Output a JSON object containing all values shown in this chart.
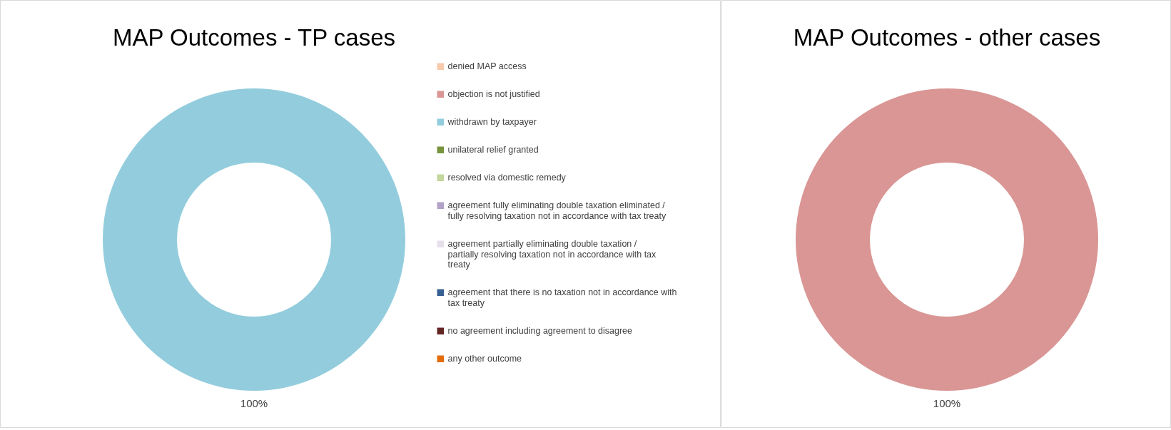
{
  "chart_data": [
    {
      "type": "donut",
      "title": "MAP Outcomes - TP cases",
      "categories": [
        "denied MAP access",
        "objection is not justified",
        "withdrawn by taxpayer",
        "unilateral relief granted",
        "resolved via domestic remedy",
        "agreement fully eliminating double taxation eliminated / fully resolving taxation not in accordance with tax treaty",
        "agreement partially eliminating double taxation / partially resolving taxation not in accordance with tax treaty",
        "agreement that there is no taxation not in accordance with tax treaty",
        "no agreement including agreement to disagree",
        "any other outcome"
      ],
      "values": [
        0,
        0,
        100,
        0,
        0,
        0,
        0,
        0,
        0,
        0
      ],
      "colors": [
        "#f8cbad",
        "#d99694",
        "#93cddd",
        "#77933c",
        "#c3d69b",
        "#b3a2c7",
        "#e6e0ec",
        "#376092",
        "#632523",
        "#e46c0a"
      ],
      "value_labels": [
        null,
        null,
        "100%",
        null,
        null,
        null,
        null,
        null,
        null,
        null
      ],
      "legend": "right"
    },
    {
      "type": "donut",
      "title": "MAP Outcomes - other cases",
      "categories": [
        null
      ],
      "values": [
        100
      ],
      "colors": [
        "#d99694"
      ],
      "value_labels": [
        "100%"
      ],
      "legend": false
    }
  ]
}
